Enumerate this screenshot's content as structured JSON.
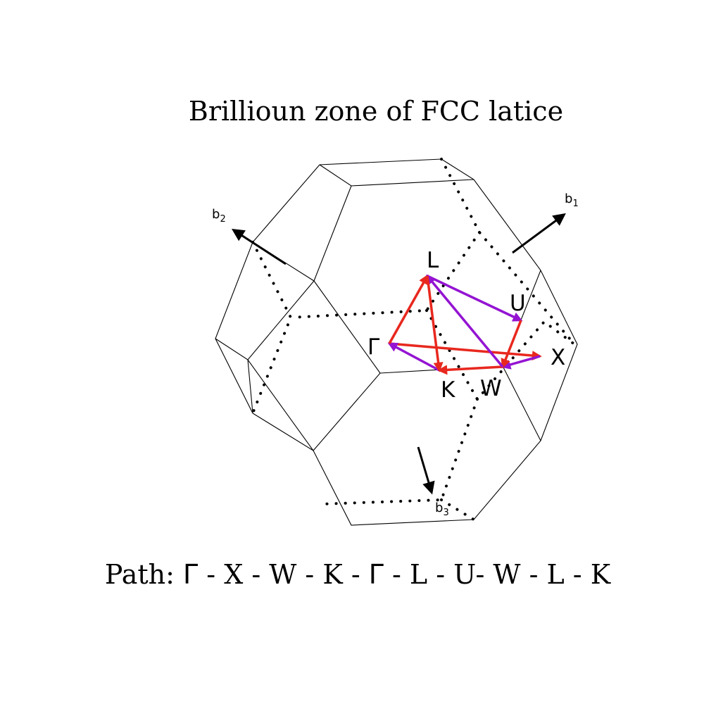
{
  "title": "Brillioun zone of FCC latice",
  "path_caption": {
    "prefix": "Path: ",
    "sequence": [
      "Γ",
      "X",
      "W",
      "K",
      "Γ",
      "L",
      "U",
      "W",
      "L",
      "K"
    ],
    "separators": [
      " - ",
      " - ",
      " - ",
      " - ",
      " - ",
      " - ",
      "- ",
      " - ",
      " - "
    ]
  },
  "basis_vectors": [
    {
      "name": "b1",
      "base": "b",
      "sub": "1"
    },
    {
      "name": "b2",
      "base": "b",
      "sub": "2"
    },
    {
      "name": "b3",
      "base": "b",
      "sub": "3"
    }
  ],
  "points": {
    "L": "L",
    "U": "U",
    "Gamma": "Γ",
    "X": "X",
    "K": "K",
    "W": "W"
  },
  "colors": {
    "edges": "#000000",
    "path_red": "#e8281e",
    "path_purple": "#9414d2",
    "arrows": "#000000"
  }
}
